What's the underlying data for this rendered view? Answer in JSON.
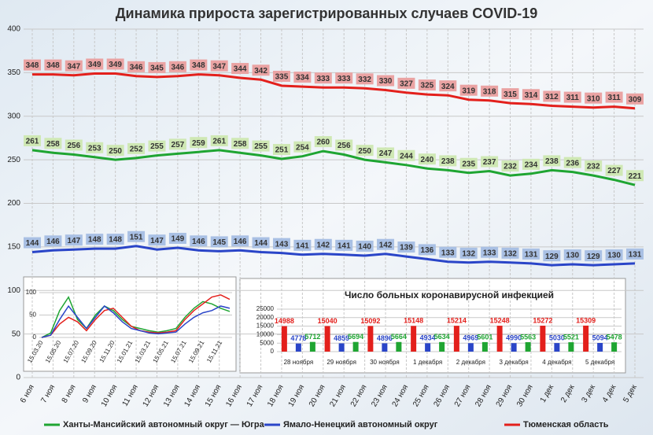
{
  "chart_data": [
    {
      "type": "line",
      "title": "Динамика прироста зарегистрированных случаев COVID-19",
      "categories": [
        "6 ноя",
        "7 ноя",
        "8 ноя",
        "9 ноя",
        "10 ноя",
        "11 ноя",
        "12 ноя",
        "13 ноя",
        "14 ноя",
        "15 ноя",
        "16 ноя",
        "17 ноя",
        "18 ноя",
        "19 ноя",
        "20 ноя",
        "21 ноя",
        "22 ноя",
        "23 ноя",
        "24 ноя",
        "25 ноя",
        "26 ноя",
        "27 ноя",
        "28 ноя",
        "29 ноя",
        "30 ноя",
        "1 дек",
        "2 дек",
        "3 дек",
        "4 дек",
        "5 дек"
      ],
      "series": [
        {
          "name": "Ханты-Мансийский автономный округ — Югра",
          "color": "#1fa532",
          "label_fill": "#cfe8b4",
          "values": [
            261,
            258,
            256,
            253,
            250,
            252,
            255,
            257,
            259,
            261,
            258,
            255,
            251,
            254,
            260,
            256,
            250,
            247,
            244,
            240,
            238,
            235,
            237,
            232,
            234,
            238,
            236,
            232,
            227,
            221
          ]
        },
        {
          "name": "Ямало-Ненецкий автономный округ",
          "color": "#2a45c8",
          "label_fill": "#a9c0e4",
          "values": [
            144,
            146,
            147,
            148,
            148,
            151,
            147,
            149,
            146,
            145,
            146,
            144,
            143,
            141,
            142,
            141,
            140,
            142,
            139,
            136,
            133,
            132,
            133,
            132,
            131,
            129,
            130,
            129,
            130,
            131
          ]
        },
        {
          "name": "Тюменская область",
          "color": "#e3201c",
          "label_fill": "#eaa3a3",
          "values": [
            348,
            348,
            347,
            349,
            349,
            346,
            345,
            346,
            348,
            347,
            344,
            342,
            335,
            334,
            333,
            333,
            332,
            330,
            327,
            325,
            324,
            319,
            318,
            315,
            314,
            312,
            311,
            310,
            311,
            309
          ]
        }
      ],
      "ylim": [
        0,
        400
      ],
      "yticks": [
        0,
        50,
        100,
        150,
        200,
        250,
        300,
        350,
        400
      ],
      "grid": true
    },
    {
      "type": "line",
      "categories": [
        "15.03.20",
        null,
        "15.05.20",
        null,
        "15.07.20",
        null,
        "15.09.20",
        null,
        "15.11.20",
        null,
        "15.01.21",
        null,
        "15.03.21",
        null,
        "15.05.21",
        null,
        "15.07.21",
        null,
        "15.09.21",
        null,
        "15.11.21",
        null
      ],
      "series": [
        {
          "color": "#1fa532",
          "values": [
            0,
            10,
            60,
            90,
            40,
            20,
            50,
            70,
            60,
            40,
            25,
            20,
            15,
            12,
            15,
            20,
            45,
            65,
            80,
            75,
            65,
            58
          ]
        },
        {
          "color": "#e3201c",
          "values": [
            0,
            5,
            30,
            45,
            35,
            15,
            40,
            60,
            65,
            45,
            25,
            15,
            12,
            10,
            12,
            15,
            40,
            60,
            75,
            90,
            95,
            85
          ]
        },
        {
          "color": "#2a45c8",
          "values": [
            0,
            5,
            40,
            70,
            45,
            20,
            45,
            70,
            55,
            35,
            20,
            15,
            10,
            8,
            10,
            12,
            30,
            45,
            55,
            60,
            70,
            65
          ]
        }
      ],
      "ylim": [
        0,
        100
      ],
      "yticks": [
        0,
        50,
        100
      ],
      "grid": true
    },
    {
      "type": "bar",
      "title": "Число больных коронавирусной инфекцией",
      "categories": [
        "28 ноября",
        "29 ноября",
        "30 ноября",
        "1 декабря",
        "2 декабря",
        "3 декабря",
        "4 декабря",
        "5 декабря"
      ],
      "series": [
        {
          "color": "#e3201c",
          "values": [
            14988,
            15040,
            15092,
            15148,
            15214,
            15248,
            15272,
            15309
          ]
        },
        {
          "color": "#2a45c8",
          "values": [
            4778,
            4859,
            4896,
            4934,
            4969,
            4990,
            5030,
            5094
          ]
        },
        {
          "color": "#1fa532",
          "values": [
            5712,
            5694,
            5664,
            5634,
            5601,
            5563,
            5521,
            5478
          ]
        }
      ],
      "ylim": [
        0,
        25000
      ],
      "yticks": [
        0,
        5000,
        10000,
        15000,
        20000,
        25000
      ],
      "grid": true
    }
  ]
}
